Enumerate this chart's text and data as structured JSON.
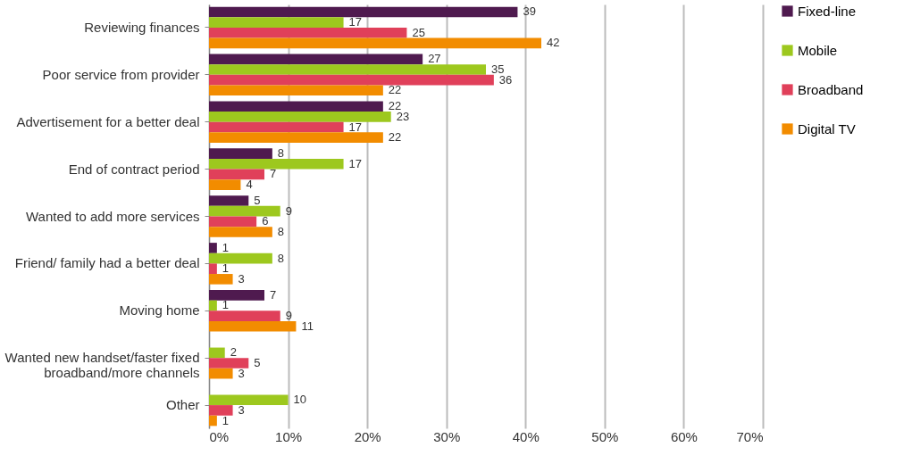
{
  "chart_data": {
    "type": "bar",
    "orientation": "horizontal",
    "categories": [
      "Reviewing finances",
      "Poor service from provider",
      "Advertisement for a better deal",
      "End of contract period",
      "Wanted to add more services",
      "Friend/ family had a better deal",
      "Moving home",
      "Wanted new handset/faster fixed broadband/more channels",
      "Other"
    ],
    "series": [
      {
        "name": "Fixed-line",
        "color": "#4f1a4f",
        "values": [
          39,
          27,
          22,
          8,
          5,
          1,
          7,
          null,
          null
        ]
      },
      {
        "name": "Mobile",
        "color": "#9dc81e",
        "values": [
          17,
          35,
          23,
          17,
          9,
          8,
          1,
          2,
          10
        ]
      },
      {
        "name": "Broadband",
        "color": "#e0405a",
        "values": [
          25,
          36,
          17,
          7,
          6,
          1,
          9,
          5,
          3
        ]
      },
      {
        "name": "Digital TV",
        "color": "#f28c00",
        "values": [
          42,
          22,
          22,
          4,
          8,
          3,
          11,
          3,
          1
        ]
      }
    ],
    "xlim": [
      0,
      70
    ],
    "xticks": [
      {
        "value": 0,
        "label": "0%"
      },
      {
        "value": 10,
        "label": "10%"
      },
      {
        "value": 20,
        "label": "20%"
      },
      {
        "value": 30,
        "label": "30%"
      },
      {
        "value": 40,
        "label": "40%"
      },
      {
        "value": 50,
        "label": "50%"
      },
      {
        "value": 60,
        "label": "60%"
      },
      {
        "value": 70,
        "label": "70%"
      }
    ],
    "grid": "x",
    "legend": "right",
    "data_labels": true
  }
}
